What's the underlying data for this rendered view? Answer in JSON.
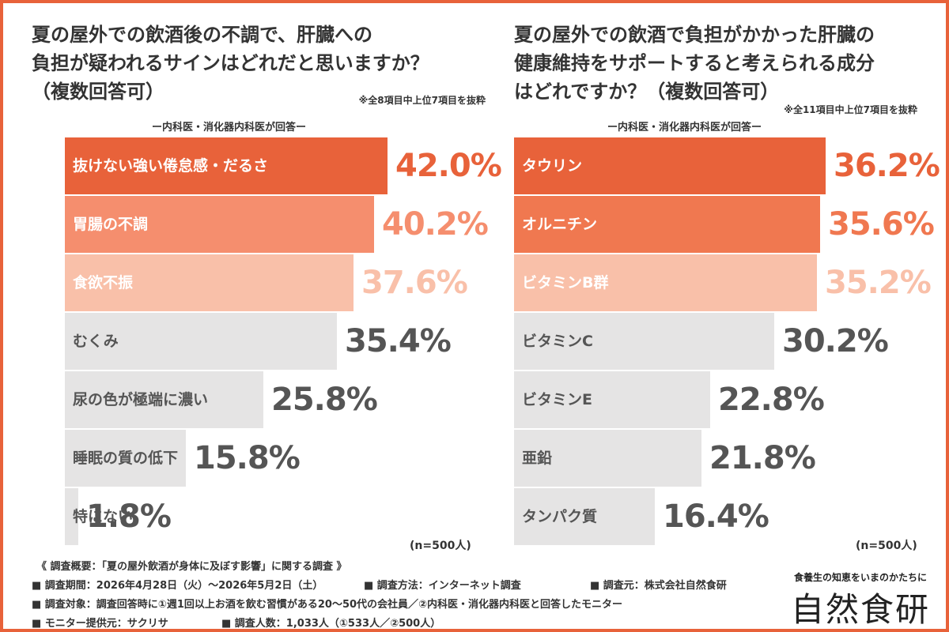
{
  "chart_data": [
    {
      "type": "bar",
      "orientation": "horizontal",
      "title": "夏の屋外での飲酒後の不調で、肝臓への負担が疑われるサインはどれだと思いますか？（複数回答可）",
      "title_lines": [
        "夏の屋外での飲酒後の不調で、肝臓への",
        "負担が疑われるサインはどれだと思いますか？",
        "（複数回答可）"
      ],
      "note": "※全8項目中上位7項目を抜粋",
      "subtitle": "ー内科医・消化器内科医が回答ー",
      "sample": "(n=500人)",
      "unit": "%",
      "categories": [
        "抜けない強い倦怠感・だるさ",
        "胃腸の不調",
        "食欲不振",
        "むくみ",
        "尿の色が極端に濃い",
        "睡眠の質の低下",
        "特にない"
      ],
      "values": [
        42.0,
        40.2,
        37.6,
        35.4,
        25.8,
        15.8,
        1.8
      ],
      "labels": [
        "42.0%",
        "40.2%",
        "37.6%",
        "35.4%",
        "25.8%",
        "15.8%",
        "1.8%"
      ],
      "bar_colors": [
        "#e8623a",
        "#f58e6e",
        "#f9c0a9",
        "#e5e4e4",
        "#e5e4e4",
        "#e5e4e4",
        "#e5e4e4"
      ],
      "label_colors": [
        "#ffffff",
        "#ffffff",
        "#ffffff",
        "#555555",
        "#555555",
        "#555555",
        "#555555"
      ],
      "value_colors": [
        "#e8623a",
        "#f58e6e",
        "#f9c0a9",
        "#555555",
        "#555555",
        "#555555",
        "#555555"
      ],
      "xlim": [
        0,
        42.0
      ]
    },
    {
      "type": "bar",
      "orientation": "horizontal",
      "title": "夏の屋外での飲酒で負担がかかった肝臓の健康維持をサポートすると考えられる成分はどれですか？（複数回答可）",
      "title_lines": [
        "夏の屋外での飲酒で負担がかかった肝臓の",
        "健康維持をサポートすると考えられる成分",
        "はどれですか？（複数回答可）"
      ],
      "note": "※全11項目中上位7項目を抜粋",
      "subtitle": "ー内科医・消化器内科医が回答ー",
      "sample": "(n=500人)",
      "unit": "%",
      "categories": [
        "タウリン",
        "オルニチン",
        "ビタミンB群",
        "ビタミンC",
        "ビタミンE",
        "亜鉛",
        "タンパク質"
      ],
      "values": [
        36.2,
        35.6,
        35.2,
        30.2,
        22.8,
        21.8,
        16.4
      ],
      "labels": [
        "36.2%",
        "35.6%",
        "35.2%",
        "30.2%",
        "22.8%",
        "21.8%",
        "16.4%"
      ],
      "bar_colors": [
        "#e8623a",
        "#f07850",
        "#f9c0a9",
        "#e5e4e4",
        "#e5e4e4",
        "#e5e4e4",
        "#e5e4e4"
      ],
      "label_colors": [
        "#ffffff",
        "#ffffff",
        "#ffffff",
        "#555555",
        "#555555",
        "#555555",
        "#555555"
      ],
      "value_colors": [
        "#e8623a",
        "#f07850",
        "#f9c0a9",
        "#555555",
        "#555555",
        "#555555",
        "#555555"
      ],
      "xlim": [
        0,
        36.2
      ]
    }
  ],
  "footer": {
    "lines": [
      "《 調査概要：「夏の屋外飲酒が身体に及ぼす影響」に関する調査 》",
      "■ 調査期間：2026年4月28日（火）〜2026年5月2日（土）",
      "■ 調査方法：インターネット調査",
      "■ 調査元：株式会社自然食研",
      "■ 調査対象：調査回答時に①週1回以上お酒を飲む習慣がある20〜50代の会社員／②内科医・消化器内科医と回答したモニター",
      "■ モニター提供元：サクリサ",
      "■ 調査人数：1,033人（①533人／②500人）"
    ]
  },
  "brand": {
    "tagline": "食養生の知恵をいまのかたちに",
    "logo": "自然食研"
  },
  "colors": {
    "frame": "#e8623a",
    "text": "#333333"
  }
}
